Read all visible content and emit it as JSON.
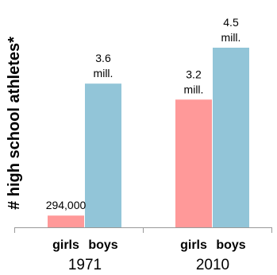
{
  "chart_data": {
    "type": "bar",
    "ylabel": "# high school athletes*",
    "groups": [
      {
        "label": "1971",
        "bars": [
          {
            "category": "girls",
            "value": 294000,
            "data_label": [
              "294,000"
            ],
            "color": "#ff9999"
          },
          {
            "category": "boys",
            "value": 3600000,
            "data_label": [
              "3.6",
              "mill."
            ],
            "color": "#92c5d8"
          }
        ]
      },
      {
        "label": "2010",
        "bars": [
          {
            "category": "girls",
            "value": 3200000,
            "data_label": [
              "3.2",
              "mill."
            ],
            "color": "#ff9999"
          },
          {
            "category": "boys",
            "value": 4500000,
            "data_label": [
              "4.5",
              "mill."
            ],
            "color": "#92c5d8"
          }
        ]
      }
    ],
    "ylim": [
      0,
      4500000
    ],
    "grid": false,
    "legend": "none"
  }
}
